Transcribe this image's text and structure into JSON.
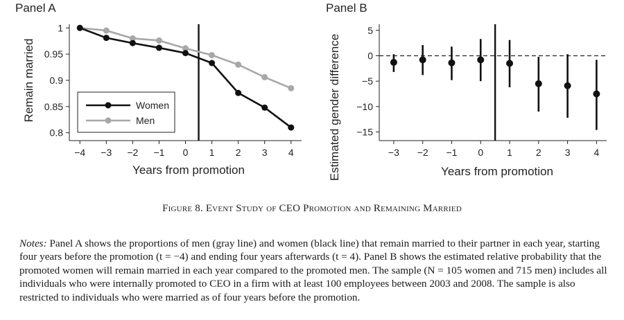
{
  "chart_data": [
    {
      "panel": "Panel A",
      "type": "line",
      "x": [
        -4,
        -3,
        -2,
        -1,
        0,
        1,
        2,
        3,
        4
      ],
      "series": [
        {
          "name": "Women",
          "color": "#111111",
          "values": [
            1.0,
            0.981,
            0.971,
            0.962,
            0.952,
            0.933,
            0.876,
            0.848,
            0.81
          ]
        },
        {
          "name": "Men",
          "color": "#a8a8a8",
          "values": [
            1.0,
            0.995,
            0.98,
            0.976,
            0.961,
            0.948,
            0.93,
            0.906,
            0.885
          ]
        }
      ],
      "xlabel": "Years from promotion",
      "ylabel": "Remain married",
      "xlim": [
        -4.4,
        4.4
      ],
      "ylim": [
        0.785,
        1.007
      ],
      "xticks": [
        -4,
        -3,
        -2,
        -1,
        0,
        1,
        2,
        3,
        4
      ],
      "xtick_labels": [
        "−4",
        "−3",
        "−2",
        "−1",
        "0",
        "1",
        "2",
        "3",
        "4"
      ],
      "yticks": [
        0.8,
        0.85,
        0.9,
        0.95,
        1
      ],
      "ytick_labels": [
        "0.8",
        "0.85",
        "0.9",
        "0.95",
        "1"
      ],
      "vline": 0.5,
      "legend": "bottom-left"
    },
    {
      "panel": "Panel B",
      "type": "scatter",
      "x": [
        -3,
        -2,
        -1,
        0,
        1,
        2,
        3,
        4
      ],
      "estimates": [
        -1.3,
        -0.8,
        -1.4,
        -0.8,
        -1.5,
        -5.5,
        -5.9,
        -7.5
      ],
      "ci_low": [
        -3.2,
        -3.8,
        -4.8,
        -5.0,
        -6.2,
        -11.0,
        -12.2,
        -14.6
      ],
      "ci_high": [
        0.3,
        2.1,
        1.8,
        3.3,
        3.1,
        -0.2,
        0.3,
        -0.8
      ],
      "xlabel": "Years from promotion",
      "ylabel": "Estimated gender difference",
      "xlim": [
        -3.5,
        4.35
      ],
      "ylim": [
        -16.7,
        6.2
      ],
      "xticks": [
        -3,
        -2,
        -1,
        0,
        1,
        2,
        3,
        4
      ],
      "xtick_labels": [
        "−3",
        "−2",
        "−1",
        "0",
        "1",
        "2",
        "3",
        "4"
      ],
      "yticks": [
        5,
        0,
        -5,
        -10,
        -15
      ],
      "ytick_labels": [
        "5",
        "0",
        "−5",
        "−10",
        "−15"
      ],
      "hline": 0,
      "vline": 0.5
    }
  ],
  "figure": {
    "caption": "Figure 8. Event Study of CEO Promotion and Remaining Married"
  },
  "notes": {
    "label": "Notes:",
    "text": " Panel A shows the proportions of men (gray line) and women (black line) that remain married to their partner in each year, starting four years before the promotion (t = −4) and ending four years afterwards (t = 4). Panel B shows the estimated relative probability that the promoted women will remain married in each year compared to the promoted men. The sample (N = 105 women and 715 men) includes all individuals who were internally promoted to CEO in a firm with at least 100 employees between 2003 and 2008. The sample is also restricted to individuals who were married as of four years before the promotion."
  }
}
